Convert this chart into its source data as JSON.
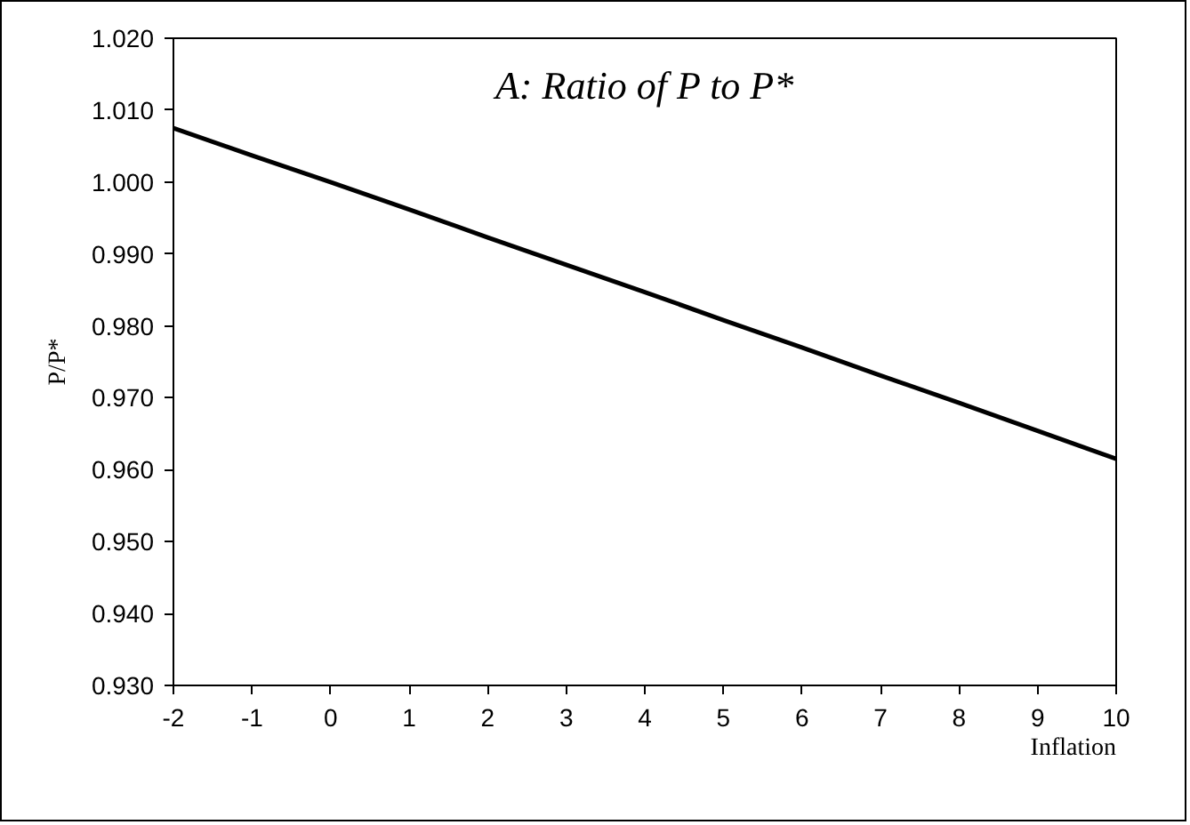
{
  "chart_data": {
    "type": "line",
    "title": "A: Ratio of P to P*",
    "xlabel": "Inflation",
    "ylabel": "P/P*",
    "x": [
      -2,
      -1,
      0,
      1,
      2,
      3,
      4,
      5,
      6,
      7,
      8,
      9,
      10
    ],
    "series": [
      {
        "color": "#000000",
        "values": [
          1.0075,
          1.0037,
          1.0,
          0.9962,
          0.9923,
          0.9885,
          0.9847,
          0.9808,
          0.977,
          0.9731,
          0.9693,
          0.9654,
          0.9615
        ]
      }
    ],
    "xlim": [
      -2,
      10
    ],
    "xticks": [
      -2,
      -1,
      0,
      1,
      2,
      3,
      4,
      5,
      6,
      7,
      8,
      9,
      10
    ],
    "ylim": [
      0.93,
      1.02
    ],
    "yticks": [
      {
        "value": 0.93,
        "label": "0.930"
      },
      {
        "value": 0.94,
        "label": "0.940"
      },
      {
        "value": 0.95,
        "label": "0.950"
      },
      {
        "value": 0.96,
        "label": "0.960"
      },
      {
        "value": 0.97,
        "label": "0.970"
      },
      {
        "value": 0.98,
        "label": "0.980"
      },
      {
        "value": 0.99,
        "label": "0.990"
      },
      {
        "value": 1.0,
        "label": "1.000"
      },
      {
        "value": 1.01,
        "label": "1.010"
      },
      {
        "value": 1.02,
        "label": "1.020"
      }
    ],
    "grid": false,
    "marker": "none",
    "line_style": "solid"
  }
}
